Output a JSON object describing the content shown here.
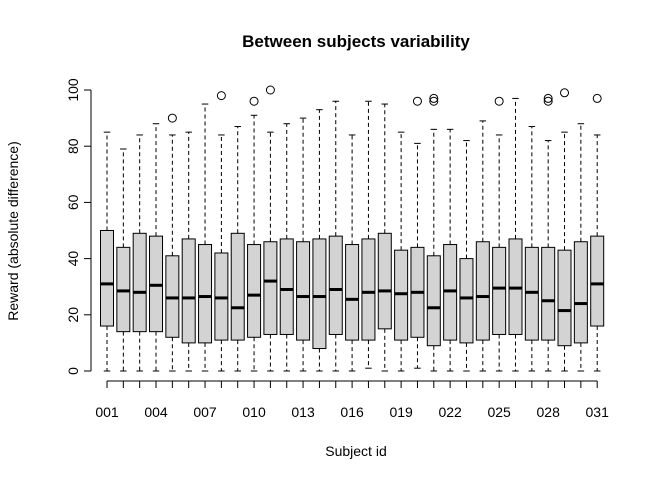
{
  "chart_data": {
    "type": "box",
    "title": "Between subjects variability",
    "xlabel": "Subject id",
    "ylabel": "Reward (absolute difference)",
    "ylim": [
      0,
      100
    ],
    "yticks": [
      0,
      20,
      40,
      60,
      80,
      100
    ],
    "xtick_labels": [
      "001",
      "004",
      "007",
      "010",
      "013",
      "016",
      "019",
      "022",
      "025",
      "028",
      "031"
    ],
    "box_fill": "#d3d3d3",
    "subjects": [
      {
        "id": "001",
        "min": 0,
        "q1": 16,
        "median": 31,
        "q3": 50,
        "max": 85,
        "outliers": []
      },
      {
        "id": "002",
        "min": 0,
        "q1": 14,
        "median": 28.5,
        "q3": 44,
        "max": 79,
        "outliers": []
      },
      {
        "id": "003",
        "min": 0,
        "q1": 14,
        "median": 28,
        "q3": 49,
        "max": 84,
        "outliers": []
      },
      {
        "id": "004",
        "min": 0,
        "q1": 14,
        "median": 30.5,
        "q3": 48,
        "max": 88,
        "outliers": []
      },
      {
        "id": "005",
        "min": 0,
        "q1": 12,
        "median": 26,
        "q3": 41,
        "max": 84,
        "outliers": [
          90
        ]
      },
      {
        "id": "006",
        "min": 0,
        "q1": 10,
        "median": 26,
        "q3": 47,
        "max": 85,
        "outliers": []
      },
      {
        "id": "007",
        "min": 0,
        "q1": 10,
        "median": 26.5,
        "q3": 45,
        "max": 95,
        "outliers": []
      },
      {
        "id": "008",
        "min": 0,
        "q1": 11,
        "median": 26,
        "q3": 42,
        "max": 84,
        "outliers": [
          98
        ]
      },
      {
        "id": "009",
        "min": 0,
        "q1": 11,
        "median": 22.5,
        "q3": 49,
        "max": 87,
        "outliers": []
      },
      {
        "id": "010",
        "min": 0,
        "q1": 12,
        "median": 27,
        "q3": 45,
        "max": 91,
        "outliers": [
          96
        ]
      },
      {
        "id": "011",
        "min": 0,
        "q1": 13,
        "median": 32,
        "q3": 46,
        "max": 85,
        "outliers": [
          100
        ]
      },
      {
        "id": "012",
        "min": 0,
        "q1": 13,
        "median": 29,
        "q3": 47,
        "max": 88,
        "outliers": []
      },
      {
        "id": "013",
        "min": 0,
        "q1": 11,
        "median": 26.5,
        "q3": 46,
        "max": 90,
        "outliers": []
      },
      {
        "id": "014",
        "min": 0,
        "q1": 8,
        "median": 26.5,
        "q3": 47,
        "max": 93,
        "outliers": []
      },
      {
        "id": "015",
        "min": 0,
        "q1": 13,
        "median": 29,
        "q3": 48,
        "max": 96,
        "outliers": []
      },
      {
        "id": "016",
        "min": 0,
        "q1": 11,
        "median": 25.5,
        "q3": 45,
        "max": 84,
        "outliers": []
      },
      {
        "id": "017",
        "min": 1,
        "q1": 11,
        "median": 28,
        "q3": 47,
        "max": 96,
        "outliers": []
      },
      {
        "id": "018",
        "min": 0,
        "q1": 15,
        "median": 28.5,
        "q3": 49,
        "max": 95,
        "outliers": []
      },
      {
        "id": "019",
        "min": 0,
        "q1": 11,
        "median": 27.5,
        "q3": 43,
        "max": 85,
        "outliers": []
      },
      {
        "id": "020",
        "min": 1,
        "q1": 12,
        "median": 28,
        "q3": 44,
        "max": 81,
        "outliers": [
          96
        ]
      },
      {
        "id": "021",
        "min": 0,
        "q1": 9,
        "median": 22.5,
        "q3": 41,
        "max": 86,
        "outliers": [
          96,
          97
        ]
      },
      {
        "id": "022",
        "min": 0,
        "q1": 11,
        "median": 28.5,
        "q3": 45,
        "max": 86,
        "outliers": []
      },
      {
        "id": "023",
        "min": 0,
        "q1": 10,
        "median": 26,
        "q3": 40,
        "max": 82,
        "outliers": []
      },
      {
        "id": "024",
        "min": 0,
        "q1": 11,
        "median": 26.5,
        "q3": 46,
        "max": 89,
        "outliers": []
      },
      {
        "id": "025",
        "min": 0,
        "q1": 13,
        "median": 29.5,
        "q3": 44,
        "max": 84,
        "outliers": [
          96
        ]
      },
      {
        "id": "026",
        "min": 0,
        "q1": 13,
        "median": 29.5,
        "q3": 47,
        "max": 97,
        "outliers": []
      },
      {
        "id": "027",
        "min": 0,
        "q1": 11,
        "median": 28,
        "q3": 44,
        "max": 87,
        "outliers": []
      },
      {
        "id": "028",
        "min": 0,
        "q1": 11,
        "median": 25,
        "q3": 44,
        "max": 82,
        "outliers": [
          96,
          97
        ]
      },
      {
        "id": "029",
        "min": 0,
        "q1": 9,
        "median": 21.5,
        "q3": 43,
        "max": 85,
        "outliers": [
          99
        ]
      },
      {
        "id": "030",
        "min": 0,
        "q1": 10,
        "median": 24,
        "q3": 46,
        "max": 88,
        "outliers": []
      },
      {
        "id": "031",
        "min": 0,
        "q1": 16,
        "median": 31,
        "q3": 48,
        "max": 84,
        "outliers": [
          97
        ]
      }
    ]
  }
}
